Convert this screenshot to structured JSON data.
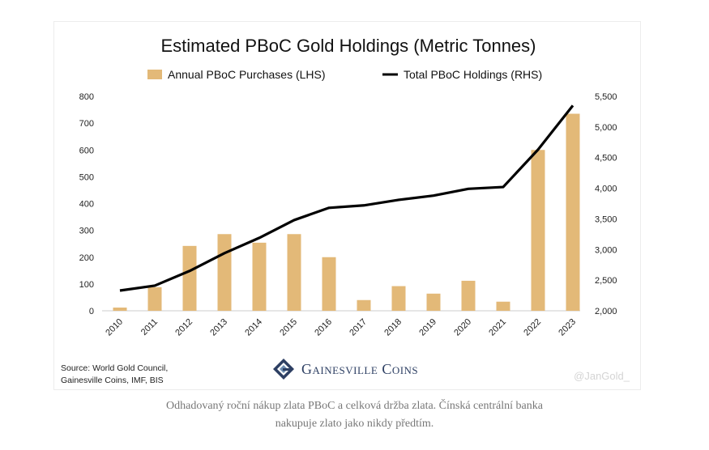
{
  "chart_data": {
    "type": "bar+line",
    "title": "Estimated PBoC Gold Holdings (Metric Tonnes)",
    "categories": [
      "2010",
      "2011",
      "2012",
      "2013",
      "2014",
      "2015",
      "2016",
      "2017",
      "2018",
      "2019",
      "2020",
      "2021",
      "2022",
      "2023"
    ],
    "series": [
      {
        "name": "Annual PBoC Purchases (LHS)",
        "type": "bar",
        "axis": "left",
        "color": "#e3b978",
        "values": [
          12,
          88,
          242,
          286,
          254,
          286,
          200,
          40,
          92,
          64,
          112,
          34,
          600,
          735
        ]
      },
      {
        "name": "Total PBoC Holdings (RHS)",
        "type": "line",
        "axis": "right",
        "color": "#000000",
        "values": [
          2330,
          2410,
          2650,
          2940,
          3190,
          3480,
          3680,
          3720,
          3810,
          3880,
          3990,
          4020,
          4630,
          5350
        ]
      }
    ],
    "left_axis": {
      "min": 0,
      "max": 800,
      "ticks": [
        "0",
        "100",
        "200",
        "300",
        "400",
        "500",
        "600",
        "700",
        "800"
      ]
    },
    "right_axis": {
      "min": 2000,
      "max": 5500,
      "ticks": [
        "2,000",
        "2,500",
        "3,000",
        "3,500",
        "4,000",
        "4,500",
        "5,000",
        "5,500"
      ]
    },
    "grid": false,
    "legend": "top-center"
  },
  "source_lines": [
    "Source: World Gold Council,",
    "Gainesville Coins, IMF, BIS"
  ],
  "logo_text": "Gainesville Coins",
  "watermark": "@JanGold_",
  "caption_lines": [
    "Odhadovaný roční nákup zlata PBoC a celková držba zlata. Čínská centrální banka",
    "nakupuje zlato jako nikdy předtím."
  ]
}
